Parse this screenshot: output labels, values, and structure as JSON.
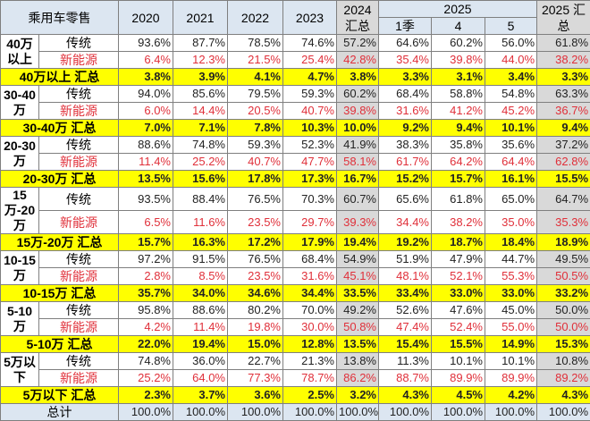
{
  "header": {
    "title": "乘用车零售",
    "years": [
      "2020",
      "2021",
      "2022",
      "2023"
    ],
    "y2024": "2024 汇总",
    "y2025": "2025",
    "months": [
      "1季",
      "4",
      "5"
    ],
    "y2025sum": "2025 汇总"
  },
  "types": {
    "traditional": "传统",
    "nev": "新能源"
  },
  "groups": [
    {
      "label": "40万以上",
      "summary_label": "40万以上 汇总",
      "traditional": [
        "93.6%",
        "87.7%",
        "78.5%",
        "74.6%",
        "57.2%",
        "64.6%",
        "60.2%",
        "56.0%",
        "61.8%"
      ],
      "nev": [
        "6.4%",
        "12.3%",
        "21.5%",
        "25.4%",
        "42.8%",
        "35.4%",
        "39.8%",
        "44.0%",
        "38.2%"
      ],
      "summary": [
        "3.8%",
        "3.9%",
        "4.1%",
        "4.7%",
        "3.8%",
        "3.3%",
        "3.1%",
        "3.4%",
        "3.3%"
      ]
    },
    {
      "label": "30-40万",
      "summary_label": "30-40万 汇总",
      "traditional": [
        "94.0%",
        "85.6%",
        "79.5%",
        "59.3%",
        "60.2%",
        "68.4%",
        "58.8%",
        "54.8%",
        "63.3%"
      ],
      "nev": [
        "6.0%",
        "14.4%",
        "20.5%",
        "40.7%",
        "39.8%",
        "31.6%",
        "41.2%",
        "45.2%",
        "36.7%"
      ],
      "summary": [
        "7.0%",
        "7.1%",
        "7.8%",
        "10.3%",
        "10.0%",
        "9.2%",
        "9.4%",
        "10.1%",
        "9.4%"
      ]
    },
    {
      "label": "20-30万",
      "summary_label": "20-30万 汇总",
      "traditional": [
        "88.6%",
        "74.8%",
        "59.3%",
        "52.3%",
        "41.9%",
        "38.3%",
        "35.8%",
        "35.6%",
        "37.2%"
      ],
      "nev": [
        "11.4%",
        "25.2%",
        "40.7%",
        "47.7%",
        "58.1%",
        "61.7%",
        "64.2%",
        "64.4%",
        "62.8%"
      ],
      "summary": [
        "13.5%",
        "15.6%",
        "17.8%",
        "17.3%",
        "16.7%",
        "15.2%",
        "15.7%",
        "16.1%",
        "15.5%"
      ]
    },
    {
      "label": "15万-20万",
      "summary_label": "15万-20万 汇总",
      "traditional": [
        "93.5%",
        "88.4%",
        "76.5%",
        "70.3%",
        "60.7%",
        "65.6%",
        "61.8%",
        "65.0%",
        "64.7%"
      ],
      "nev": [
        "6.5%",
        "11.6%",
        "23.5%",
        "29.7%",
        "39.3%",
        "34.4%",
        "38.2%",
        "35.0%",
        "35.3%"
      ],
      "summary": [
        "15.7%",
        "16.3%",
        "17.2%",
        "17.9%",
        "19.4%",
        "19.2%",
        "18.7%",
        "18.4%",
        "18.9%"
      ]
    },
    {
      "label": "10-15万",
      "summary_label": "10-15万 汇总",
      "traditional": [
        "97.2%",
        "91.5%",
        "76.5%",
        "68.4%",
        "54.9%",
        "51.9%",
        "47.9%",
        "44.7%",
        "49.5%"
      ],
      "nev": [
        "2.8%",
        "8.5%",
        "23.5%",
        "31.6%",
        "45.1%",
        "48.1%",
        "52.1%",
        "55.3%",
        "50.5%"
      ],
      "summary": [
        "35.7%",
        "34.0%",
        "34.6%",
        "34.4%",
        "33.5%",
        "33.4%",
        "33.0%",
        "33.0%",
        "33.2%"
      ]
    },
    {
      "label": "5-10万",
      "summary_label": "5-10万 汇总",
      "traditional": [
        "95.8%",
        "88.6%",
        "80.2%",
        "70.0%",
        "49.2%",
        "52.6%",
        "47.6%",
        "45.0%",
        "50.0%"
      ],
      "nev": [
        "4.2%",
        "11.4%",
        "19.8%",
        "30.0%",
        "50.8%",
        "47.4%",
        "52.4%",
        "55.0%",
        "50.0%"
      ],
      "summary": [
        "22.0%",
        "19.4%",
        "15.0%",
        "12.8%",
        "13.5%",
        "15.4%",
        "15.5%",
        "14.9%",
        "15.3%"
      ]
    },
    {
      "label": "5万以下",
      "summary_label": "5万以下 汇总",
      "traditional": [
        "74.8%",
        "36.0%",
        "22.7%",
        "21.3%",
        "13.8%",
        "11.3%",
        "10.1%",
        "10.1%",
        "10.8%"
      ],
      "nev": [
        "25.2%",
        "64.0%",
        "77.3%",
        "78.7%",
        "86.2%",
        "88.7%",
        "89.9%",
        "89.9%",
        "89.2%"
      ],
      "summary": [
        "2.3%",
        "3.7%",
        "3.6%",
        "2.5%",
        "3.2%",
        "4.3%",
        "4.5%",
        "4.2%",
        "4.3%"
      ]
    }
  ],
  "total": {
    "label": "总计",
    "values": [
      "100.0%",
      "100.0%",
      "100.0%",
      "100.0%",
      "100.0%",
      "100.0%",
      "100.0%",
      "100.0%",
      "100.0%"
    ]
  },
  "chart_data": {
    "type": "table"
  }
}
